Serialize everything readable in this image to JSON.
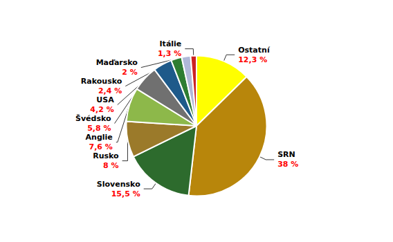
{
  "chart_data": {
    "type": "pie",
    "categories": [
      "Ostatní",
      "SRN",
      "Slovensko",
      "Rusko",
      "Anglie",
      "Švédsko",
      "USA",
      "Rakousko",
      "Maďarsko",
      "Itálie"
    ],
    "values": [
      12.3,
      38,
      15.5,
      8,
      7.6,
      5.8,
      4.2,
      2.4,
      2,
      1.3
    ],
    "value_labels": [
      "12,3 %",
      "38 %",
      "15,5 %",
      "8 %",
      "7,6 %",
      "5,8 %",
      "4,2 %",
      "2,4 %",
      "2 %",
      "1,3 %"
    ],
    "colors": [
      "#ffff00",
      "#b8860b",
      "#2d6b2d",
      "#9b7a2a",
      "#8db84a",
      "#707070",
      "#1e5a8a",
      "#2e7d32",
      "#b0b8d8",
      "#cc2222"
    ],
    "data_labels": true,
    "legend": false
  }
}
